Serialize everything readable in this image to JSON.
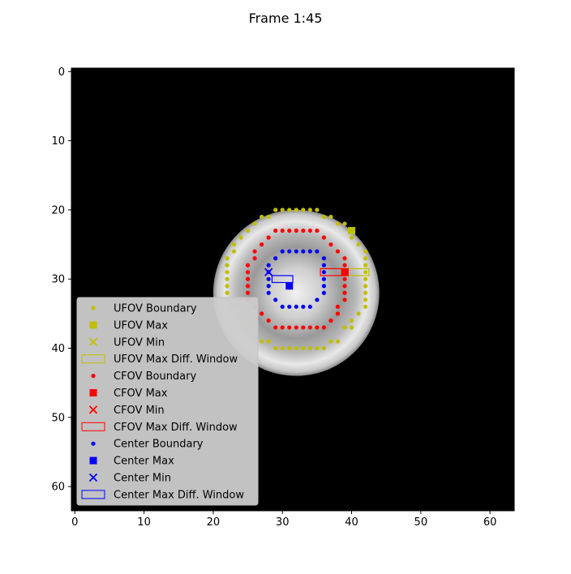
{
  "chart_data": {
    "type": "scatter",
    "title": "Frame 1:45",
    "background": "image-grayscale",
    "xlim": [
      -0.5,
      63.5
    ],
    "ylim": [
      63.5,
      -0.5
    ],
    "y_inverted": true,
    "xticks": [
      0,
      10,
      20,
      30,
      40,
      50,
      60
    ],
    "yticks": [
      0,
      10,
      20,
      30,
      40,
      50,
      60
    ],
    "xtick_labels": [
      "0",
      "10",
      "20",
      "30",
      "40",
      "50",
      "60"
    ],
    "ytick_labels": [
      "0",
      "10",
      "20",
      "30",
      "40",
      "50",
      "60"
    ],
    "grid": false,
    "legend_position": "lower-left",
    "image": {
      "center": [
        32,
        32
      ],
      "radius": 12,
      "colormap": "gray"
    },
    "series": [
      {
        "name": "UFOV Boundary",
        "kind": "points",
        "marker": "dot",
        "color": "#bfbf00",
        "points": [
          [
            29,
            20
          ],
          [
            30,
            20
          ],
          [
            31,
            20
          ],
          [
            32,
            20
          ],
          [
            33,
            20
          ],
          [
            34,
            20
          ],
          [
            35,
            20
          ],
          [
            36,
            21
          ],
          [
            37,
            21
          ],
          [
            38,
            22
          ],
          [
            39,
            22
          ],
          [
            40,
            24
          ],
          [
            41,
            25
          ],
          [
            42,
            26
          ],
          [
            42,
            27
          ],
          [
            42,
            28
          ],
          [
            42,
            29
          ],
          [
            42,
            30
          ],
          [
            42,
            31
          ],
          [
            42,
            32
          ],
          [
            42,
            33
          ],
          [
            42,
            34
          ],
          [
            41,
            35
          ],
          [
            40,
            36
          ],
          [
            40,
            37
          ],
          [
            39,
            37
          ],
          [
            38,
            39
          ],
          [
            37,
            39
          ],
          [
            36,
            40
          ],
          [
            35,
            40
          ],
          [
            34,
            40
          ],
          [
            33,
            40
          ],
          [
            32,
            40
          ],
          [
            31,
            40
          ],
          [
            30,
            40
          ],
          [
            29,
            40
          ],
          [
            28,
            39
          ],
          [
            27,
            39
          ],
          [
            26,
            37
          ],
          [
            25,
            36
          ],
          [
            24,
            35
          ],
          [
            23,
            34
          ],
          [
            22,
            33
          ],
          [
            22,
            32
          ],
          [
            22,
            31
          ],
          [
            22,
            30
          ],
          [
            22,
            29
          ],
          [
            22,
            28
          ],
          [
            22,
            27
          ],
          [
            23,
            26
          ],
          [
            23,
            25
          ],
          [
            24,
            24
          ],
          [
            25,
            23
          ],
          [
            26,
            22
          ],
          [
            27,
            21
          ],
          [
            28,
            21
          ]
        ]
      },
      {
        "name": "UFOV Max",
        "kind": "points",
        "marker": "square",
        "color": "#bfbf00",
        "points": [
          [
            40,
            23
          ]
        ]
      },
      {
        "name": "UFOV Min",
        "kind": "points",
        "marker": "x",
        "color": "#bfbf00",
        "points": [
          [
            39,
            29
          ]
        ]
      },
      {
        "name": "UFOV Max Diff. Window",
        "kind": "rect",
        "color": "#bfbf00",
        "rect": [
          38.5,
          28.5,
          42.5,
          29.5
        ]
      },
      {
        "name": "CFOV Boundary",
        "kind": "points",
        "marker": "dot",
        "color": "#ff0000",
        "points": [
          [
            29,
            23
          ],
          [
            30,
            23
          ],
          [
            31,
            23
          ],
          [
            32,
            23
          ],
          [
            33,
            23
          ],
          [
            34,
            23
          ],
          [
            35,
            23
          ],
          [
            36,
            24
          ],
          [
            37,
            25
          ],
          [
            38,
            26
          ],
          [
            39,
            27
          ],
          [
            39,
            28
          ],
          [
            39,
            29
          ],
          [
            39,
            30
          ],
          [
            39,
            31
          ],
          [
            39,
            32
          ],
          [
            39,
            33
          ],
          [
            38,
            34
          ],
          [
            38,
            35
          ],
          [
            37,
            36
          ],
          [
            36,
            37
          ],
          [
            35,
            37
          ],
          [
            34,
            37
          ],
          [
            33,
            37
          ],
          [
            32,
            37
          ],
          [
            31,
            37
          ],
          [
            30,
            37
          ],
          [
            29,
            37
          ],
          [
            28,
            36
          ],
          [
            27,
            35
          ],
          [
            26,
            34
          ],
          [
            25,
            33
          ],
          [
            25,
            32
          ],
          [
            25,
            31
          ],
          [
            25,
            30
          ],
          [
            25,
            29
          ],
          [
            25,
            28
          ],
          [
            26,
            27
          ],
          [
            26,
            26
          ],
          [
            27,
            25
          ],
          [
            28,
            24
          ]
        ]
      },
      {
        "name": "CFOV Max",
        "kind": "points",
        "marker": "square",
        "color": "#ff0000",
        "points": [
          [
            39,
            29
          ]
        ]
      },
      {
        "name": "CFOV Min",
        "kind": "points",
        "marker": "x",
        "color": "#ff0000",
        "points": [
          [
            39,
            29
          ]
        ]
      },
      {
        "name": "CFOV Max Diff. Window",
        "kind": "rect",
        "color": "#ff0000",
        "rect": [
          35.5,
          28.5,
          39.5,
          29.5
        ]
      },
      {
        "name": "Center Boundary",
        "kind": "points",
        "marker": "dot",
        "color": "#0000ff",
        "points": [
          [
            31,
            26
          ],
          [
            32,
            26
          ],
          [
            33,
            26
          ],
          [
            34,
            26
          ],
          [
            35,
            26
          ],
          [
            36,
            27
          ],
          [
            36,
            28
          ],
          [
            36,
            29
          ],
          [
            36,
            30
          ],
          [
            36,
            31
          ],
          [
            36,
            32
          ],
          [
            35,
            33
          ],
          [
            34,
            34
          ],
          [
            33,
            34
          ],
          [
            32,
            34
          ],
          [
            31,
            34
          ],
          [
            30,
            34
          ],
          [
            29,
            33
          ],
          [
            28,
            32
          ],
          [
            28,
            31
          ],
          [
            28,
            30
          ],
          [
            28,
            29
          ],
          [
            28,
            28
          ],
          [
            29,
            27
          ],
          [
            30,
            26
          ]
        ]
      },
      {
        "name": "Center Max",
        "kind": "points",
        "marker": "square",
        "color": "#0000ff",
        "points": [
          [
            31,
            31
          ]
        ]
      },
      {
        "name": "Center Min",
        "kind": "points",
        "marker": "x",
        "color": "#0000ff",
        "points": [
          [
            28,
            29
          ]
        ]
      },
      {
        "name": "Center Max Diff. Window",
        "kind": "rect",
        "color": "#0000ff",
        "rect": [
          28.5,
          29.5,
          31.5,
          30.5
        ]
      }
    ]
  }
}
